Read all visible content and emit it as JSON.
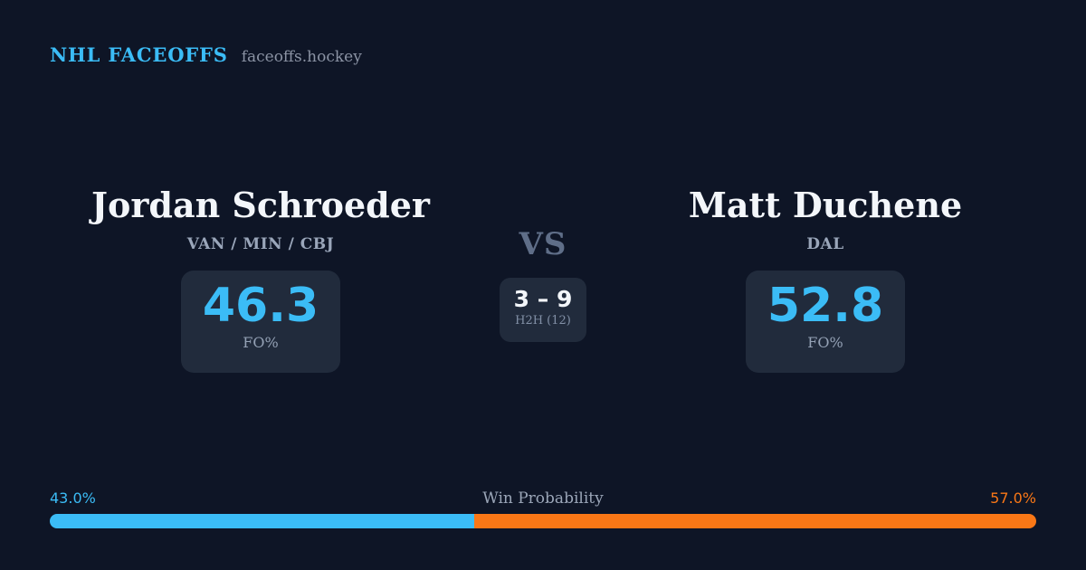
{
  "header": {
    "brand": "NHL FACEOFFS",
    "site": "faceoffs.hockey"
  },
  "players": {
    "left": {
      "name": "Jordan Schroeder",
      "teams": "VAN / MIN / CBJ",
      "fo_value": "46.3",
      "fo_label": "FO%"
    },
    "right": {
      "name": "Matt Duchene",
      "teams": "DAL",
      "fo_value": "52.8",
      "fo_label": "FO%"
    }
  },
  "matchup": {
    "vs_label": "VS",
    "h2h_score": "3 – 9",
    "h2h_label": "H2H (12)"
  },
  "win_probability": {
    "title": "Win Probability",
    "left_pct_label": "43.0%",
    "right_pct_label": "57.0%",
    "left_value": 43.0,
    "right_value": 57.0
  },
  "colors": {
    "background": "#0e1526",
    "card": "#212b3c",
    "accent_blue": "#3bbcf6",
    "accent_orange": "#f97716",
    "text_white": "#f3f6fa",
    "text_muted": "#94a1b5",
    "text_slate": "#5f6e88",
    "text_site": "#8b93a4"
  }
}
